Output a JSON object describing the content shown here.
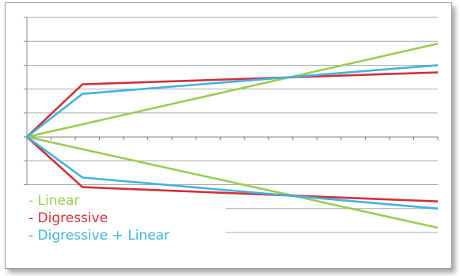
{
  "chart_data": {
    "type": "line",
    "title": "",
    "xlabel": "",
    "ylabel": "",
    "x": [
      0,
      1,
      2,
      3,
      4,
      5,
      6,
      7,
      8,
      9,
      10,
      11,
      12,
      13,
      14,
      15,
      16,
      17
    ],
    "ylim": [
      -4,
      5
    ],
    "grid": true,
    "legend_position": "bottom-left",
    "series": [
      {
        "key": "linear_up",
        "name": "- Linear",
        "color": "#9acd50",
        "points": [
          [
            0,
            0
          ],
          [
            17,
            3.9
          ]
        ]
      },
      {
        "key": "linear_down",
        "name": "- Linear",
        "color": "#9acd50",
        "points": [
          [
            0,
            0
          ],
          [
            17,
            -3.8
          ]
        ]
      },
      {
        "key": "digr_up",
        "name": "- Digressive",
        "color": "#d3303a",
        "points": [
          [
            0,
            0
          ],
          [
            2.3,
            2.2
          ],
          [
            17,
            2.7
          ]
        ]
      },
      {
        "key": "digr_down",
        "name": "- Digressive",
        "color": "#d3303a",
        "points": [
          [
            0,
            0
          ],
          [
            2.3,
            -2.1
          ],
          [
            17,
            -2.7
          ]
        ]
      },
      {
        "key": "dl_up",
        "name": "- Digressive + Linear",
        "color": "#3fb4df",
        "points": [
          [
            0,
            0
          ],
          [
            2.3,
            1.8
          ],
          [
            17,
            3.0
          ]
        ]
      },
      {
        "key": "dl_down",
        "name": "- Digressive + Linear",
        "color": "#3fb4df",
        "points": [
          [
            0,
            0
          ],
          [
            2.3,
            -1.7
          ],
          [
            17,
            -3.0
          ]
        ]
      }
    ],
    "legend": [
      {
        "label": "- Linear",
        "color": "#9acd50"
      },
      {
        "label": "- Digressive",
        "color": "#d3303a"
      },
      {
        "label": "- Digressive + Linear",
        "color": "#3fb4df"
      }
    ]
  }
}
